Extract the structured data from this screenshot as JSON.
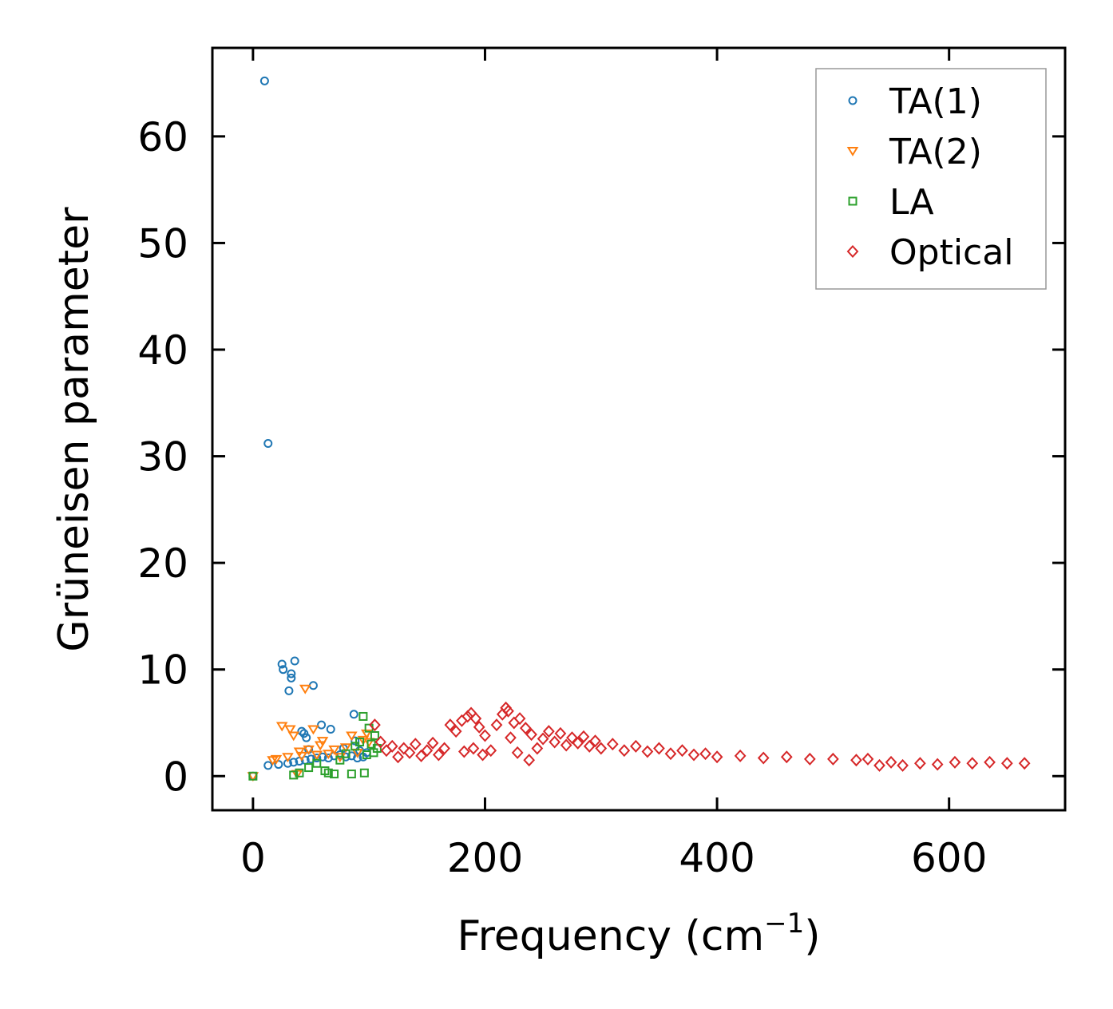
{
  "chart_data": {
    "type": "scatter",
    "title": "",
    "xlabel": "Frequency (cm",
    "xlabel_sup": "−1",
    "xlabel_close": ")",
    "ylabel": "Grüneisen parameter",
    "xlim": [
      -35,
      700
    ],
    "ylim": [
      -3.2,
      68.3
    ],
    "xticks": [
      0,
      200,
      400,
      600
    ],
    "yticks": [
      0,
      10,
      20,
      30,
      40,
      50,
      60
    ],
    "legend_position": "top-right",
    "series": [
      {
        "name": "TA(1)",
        "marker": "circle",
        "color": "#1f77b4",
        "points": [
          [
            0,
            0
          ],
          [
            10,
            65.2
          ],
          [
            13,
            31.2
          ],
          [
            13,
            1.0
          ],
          [
            22,
            1.1
          ],
          [
            25,
            10.5
          ],
          [
            26,
            10.0
          ],
          [
            30,
            1.2
          ],
          [
            31,
            8.0
          ],
          [
            33,
            9.2
          ],
          [
            33,
            9.6
          ],
          [
            35,
            1.3
          ],
          [
            36,
            10.8
          ],
          [
            40,
            1.4
          ],
          [
            42,
            4.2
          ],
          [
            44,
            4.0
          ],
          [
            45,
            1.5
          ],
          [
            46,
            3.6
          ],
          [
            48,
            2.5
          ],
          [
            50,
            1.6
          ],
          [
            52,
            8.5
          ],
          [
            55,
            1.7
          ],
          [
            59,
            4.8
          ],
          [
            60,
            1.8
          ],
          [
            65,
            1.7
          ],
          [
            67,
            4.4
          ],
          [
            70,
            1.9
          ],
          [
            75,
            2.0
          ],
          [
            78,
            2.6
          ],
          [
            80,
            1.8
          ],
          [
            85,
            1.9
          ],
          [
            87,
            5.8
          ],
          [
            88,
            3.3
          ],
          [
            90,
            1.7
          ],
          [
            92,
            2.4
          ],
          [
            95,
            1.8
          ],
          [
            98,
            2.2
          ]
        ]
      },
      {
        "name": "TA(2)",
        "marker": "triangle-down",
        "color": "#ff7f0e",
        "points": [
          [
            0,
            0
          ],
          [
            17,
            1.5
          ],
          [
            20,
            1.6
          ],
          [
            25,
            4.7
          ],
          [
            30,
            1.8
          ],
          [
            32,
            4.4
          ],
          [
            35,
            3.8
          ],
          [
            38,
            0.2
          ],
          [
            40,
            2.3
          ],
          [
            42,
            1.9
          ],
          [
            45,
            8.2
          ],
          [
            48,
            2.5
          ],
          [
            52,
            4.4
          ],
          [
            55,
            2.0
          ],
          [
            58,
            2.9
          ],
          [
            60,
            3.3
          ],
          [
            65,
            2.1
          ],
          [
            70,
            2.5
          ],
          [
            75,
            1.8
          ],
          [
            80,
            2.7
          ],
          [
            85,
            3.8
          ],
          [
            90,
            2.2
          ],
          [
            95,
            3.4
          ],
          [
            98,
            4.0
          ],
          [
            100,
            3.2
          ]
        ]
      },
      {
        "name": "LA",
        "marker": "square",
        "color": "#2ca02c",
        "points": [
          [
            0,
            0
          ],
          [
            35,
            0.1
          ],
          [
            40,
            0.3
          ],
          [
            48,
            0.8
          ],
          [
            55,
            1.2
          ],
          [
            62,
            0.5
          ],
          [
            65,
            0.3
          ],
          [
            70,
            0.2
          ],
          [
            75,
            1.5
          ],
          [
            80,
            2.1
          ],
          [
            85,
            0.2
          ],
          [
            88,
            2.8
          ],
          [
            92,
            3.2
          ],
          [
            95,
            5.6
          ],
          [
            96,
            0.3
          ],
          [
            98,
            2.0
          ],
          [
            100,
            4.5
          ],
          [
            102,
            3.0
          ],
          [
            104,
            2.2
          ],
          [
            105,
            3.8
          ],
          [
            107,
            2.6
          ]
        ]
      },
      {
        "name": "Optical",
        "marker": "diamond",
        "color": "#d62728",
        "points": [
          [
            105,
            4.8
          ],
          [
            110,
            3.2
          ],
          [
            115,
            2.4
          ],
          [
            120,
            2.8
          ],
          [
            125,
            1.8
          ],
          [
            130,
            2.6
          ],
          [
            135,
            2.2
          ],
          [
            140,
            3.0
          ],
          [
            145,
            1.9
          ],
          [
            150,
            2.4
          ],
          [
            155,
            3.1
          ],
          [
            160,
            2.0
          ],
          [
            165,
            2.6
          ],
          [
            170,
            4.8
          ],
          [
            175,
            4.2
          ],
          [
            180,
            5.2
          ],
          [
            182,
            2.3
          ],
          [
            185,
            5.6
          ],
          [
            188,
            5.9
          ],
          [
            190,
            2.6
          ],
          [
            192,
            5.4
          ],
          [
            195,
            4.6
          ],
          [
            198,
            2.0
          ],
          [
            200,
            3.8
          ],
          [
            205,
            2.4
          ],
          [
            210,
            4.8
          ],
          [
            215,
            5.8
          ],
          [
            218,
            6.4
          ],
          [
            220,
            6.1
          ],
          [
            222,
            3.6
          ],
          [
            225,
            5.0
          ],
          [
            228,
            2.2
          ],
          [
            230,
            5.4
          ],
          [
            235,
            4.5
          ],
          [
            238,
            1.5
          ],
          [
            240,
            3.9
          ],
          [
            245,
            2.6
          ],
          [
            250,
            3.5
          ],
          [
            255,
            4.2
          ],
          [
            260,
            3.2
          ],
          [
            265,
            4.0
          ],
          [
            270,
            2.9
          ],
          [
            275,
            3.6
          ],
          [
            280,
            3.1
          ],
          [
            285,
            3.7
          ],
          [
            290,
            2.8
          ],
          [
            295,
            3.3
          ],
          [
            300,
            2.6
          ],
          [
            310,
            3.0
          ],
          [
            320,
            2.4
          ],
          [
            330,
            2.8
          ],
          [
            340,
            2.3
          ],
          [
            350,
            2.6
          ],
          [
            360,
            2.1
          ],
          [
            370,
            2.4
          ],
          [
            380,
            2.0
          ],
          [
            390,
            2.1
          ],
          [
            400,
            1.8
          ],
          [
            420,
            1.9
          ],
          [
            440,
            1.7
          ],
          [
            460,
            1.8
          ],
          [
            480,
            1.6
          ],
          [
            500,
            1.6
          ],
          [
            520,
            1.5
          ],
          [
            530,
            1.6
          ],
          [
            540,
            1.0
          ],
          [
            550,
            1.3
          ],
          [
            560,
            1.0
          ],
          [
            575,
            1.2
          ],
          [
            590,
            1.1
          ],
          [
            605,
            1.3
          ],
          [
            620,
            1.2
          ],
          [
            635,
            1.3
          ],
          [
            650,
            1.2
          ],
          [
            665,
            1.2
          ]
        ]
      }
    ]
  }
}
